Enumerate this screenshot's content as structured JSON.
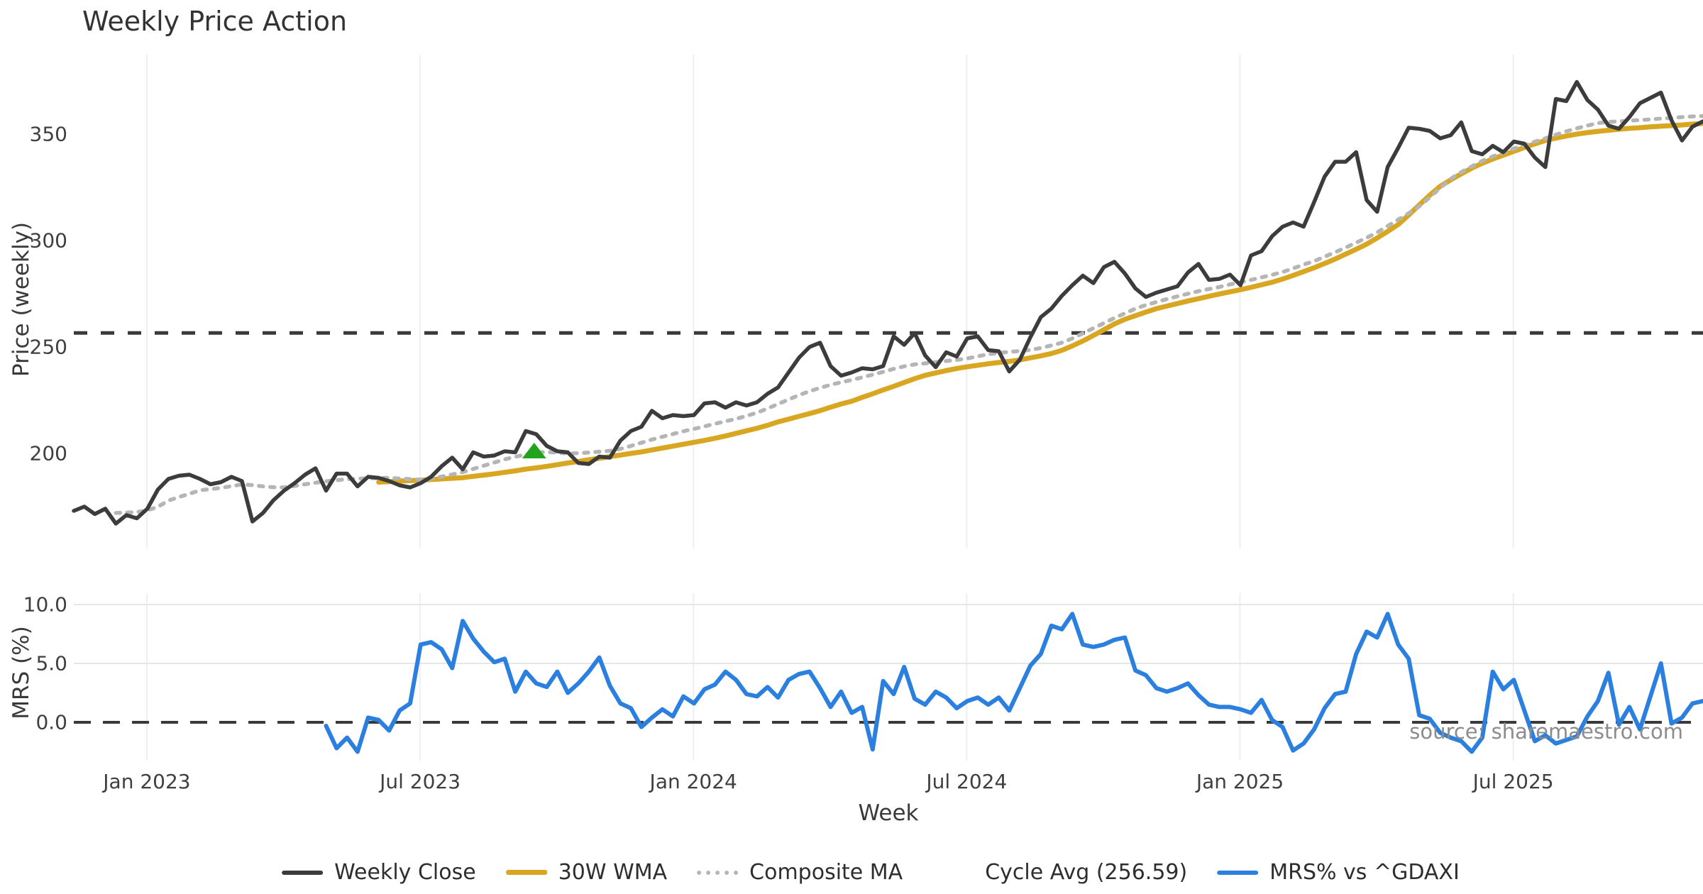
{
  "chart_data": {
    "type": "line",
    "title": "Weekly Price Action",
    "source": "source: sharemaestro.com",
    "x_axis": {
      "label": "Week",
      "ticks": [
        {
          "label": "Jan 2023",
          "week": 6.95
        },
        {
          "label": "Jul 2023",
          "week": 32.95
        },
        {
          "label": "Jan 2024",
          "week": 58.95
        },
        {
          "label": "Jul 2024",
          "week": 84.95
        },
        {
          "label": "Jan 2025",
          "week": 110.95
        },
        {
          "label": "Jul 2025",
          "week": 136.95
        }
      ]
    },
    "colors": {
      "weekly_close": "#3C3C3C",
      "wma_30w": "#D8A620",
      "composite_ma": "#B5B5B5",
      "cycle_avg": "#3A3A3A",
      "mrs": "#2B7FDE",
      "marker_green": "#1FA41C",
      "grid": "#EFEFEF",
      "grid_h": "#E6E6E6"
    },
    "panels": [
      {
        "name": "price",
        "ylabel": "Price (weekly)",
        "yticks": [
          {
            "label": "350",
            "value": 350
          },
          {
            "label": "300",
            "value": 300
          },
          {
            "label": "250",
            "value": 250
          },
          {
            "label": "200",
            "value": 200
          }
        ],
        "cycle_avg_value": 256.59,
        "buy_marker": {
          "week": 43.8,
          "price": 201
        },
        "series": [
          {
            "name": "Weekly Close",
            "start_week": 0,
            "values": [
              173,
              175,
              171.5,
              174,
              167,
              171,
              169.5,
              174,
              183,
              188,
              189.5,
              190,
              188,
              185.5,
              186.5,
              189,
              187,
              168,
              172,
              178,
              182.5,
              186,
              190,
              193,
              182.5,
              190.5,
              190.5,
              184.5,
              189,
              188.5,
              187,
              185,
              184,
              186,
              189,
              194,
              198,
              192.5,
              200.5,
              198.5,
              199,
              201,
              200.5,
              210.5,
              209,
              203.5,
              201,
              200.5,
              195.5,
              195,
              198.5,
              198,
              206,
              210.5,
              212.5,
              220,
              216.5,
              218,
              217.5,
              218,
              223.5,
              224,
              221.5,
              224,
              222.5,
              224,
              228,
              231,
              238,
              245,
              250,
              252,
              241,
              236.5,
              238,
              240,
              239.5,
              241,
              255,
              251,
              256.5,
              246,
              240.5,
              247.5,
              245.5,
              254,
              255,
              248.5,
              248,
              238.5,
              244,
              254.5,
              264,
              268,
              274,
              279,
              283.5,
              280,
              287.5,
              290,
              284.5,
              277.5,
              273.5,
              275.5,
              277,
              278.5,
              285,
              289,
              281.5,
              282,
              284,
              279,
              293,
              295,
              302,
              306.5,
              308.5,
              306.5,
              318,
              330,
              337,
              337,
              341.5,
              319,
              313.5,
              334.5,
              343.5,
              353,
              352.5,
              351.5,
              348,
              349.5,
              355.5,
              342,
              340.5,
              344.5,
              341.5,
              346.5,
              345.5,
              339,
              334.5,
              366.5,
              365.5,
              374.5,
              366,
              361.5,
              354,
              352.5,
              358,
              364.5,
              367,
              369.5,
              356.5,
              347,
              353.5,
              356
            ]
          },
          {
            "name": "30W WMA",
            "start_week": 29,
            "values": [
              186.5,
              186.7,
              187,
              187.2,
              187.4,
              187.7,
              188,
              188.3,
              188.6,
              189.2,
              189.8,
              190.4,
              191.1,
              191.8,
              192.6,
              193.2,
              193.9,
              194.7,
              195.5,
              196.2,
              197,
              197.7,
              198.5,
              199.2,
              200,
              200.7,
              201.6,
              202.5,
              203.4,
              204.3,
              205.2,
              206.1,
              207.1,
              208.2,
              209.4,
              210.6,
              211.8,
              213.2,
              214.8,
              216.1,
              217.4,
              218.7,
              220.1,
              221.7,
              223.2,
              224.5,
              226.3,
              228,
              229.8,
              231.5,
              233.3,
              235.1,
              236.7,
              237.8,
              238.9,
              239.9,
              240.7,
              241.4,
              242.1,
              242.7,
              243.2,
              243.9,
              244.9,
              245.8,
              246.9,
              248.4,
              250.5,
              252.8,
              255.4,
              258.1,
              260.8,
              263,
              264.7,
              266.4,
              268,
              269.2,
              270.4,
              271.6,
              272.7,
              273.8,
              274.9,
              275.9,
              276.9,
              278,
              279.2,
              280.4,
              281.9,
              283.6,
              285.4,
              287.2,
              289.2,
              291.3,
              293.6,
              295.9,
              298.3,
              301.2,
              304.3,
              307.5,
              312,
              316.7,
              321.3,
              325.5,
              328.5,
              331.3,
              334,
              336.3,
              338.3,
              340.1,
              341.9,
              343.7,
              345.4,
              347,
              348.1,
              349.1,
              350,
              350.7,
              351.3,
              351.8,
              352.3,
              352.7,
              353,
              353.4,
              353.7,
              354,
              354.3,
              354.7,
              355
            ]
          },
          {
            "name": "Composite MA",
            "start_week": 4,
            "values": [
              172,
              172.2,
              172.4,
              173.3,
              174.9,
              177.8,
              179.5,
              181,
              182.7,
              183.2,
              183.8,
              184.6,
              185.4,
              185.1,
              184.5,
              184.1,
              184,
              184.7,
              185.5,
              186.2,
              186.9,
              187.4,
              187.9,
              188.1,
              188.3,
              188.4,
              188.5,
              188.2,
              187.9,
              187.6,
              188,
              189.1,
              190.1,
              191.2,
              192.7,
              194.2,
              195.7,
              197.2,
              198.4,
              199.5,
              200.4,
              200.7,
              200.3,
              200,
              200.1,
              200.4,
              200.8,
              201.2,
              202.1,
              203.5,
              205,
              206.5,
              207.8,
              209.1,
              210.4,
              211.5,
              212.7,
              213.9,
              215.1,
              216.2,
              217.6,
              219.1,
              221.1,
              223.2,
              225.3,
              227.4,
              229.2,
              230.8,
              232.2,
              233.4,
              234.5,
              235.7,
              237,
              238.3,
              239.7,
              240.9,
              241.8,
              242.3,
              242.9,
              243.4,
              243.9,
              244.6,
              245.6,
              246.6,
              247.2,
              247.7,
              248.1,
              248.6,
              249.5,
              250.7,
              252,
              254,
              256.4,
              258.8,
              261.2,
              263.6,
              265.8,
              268,
              269.7,
              271.1,
              272.5,
              273.8,
              275,
              276.2,
              277.2,
              278.2,
              279.4,
              280.4,
              281.5,
              282.7,
              283.9,
              285.2,
              286.9,
              288.7,
              290.3,
              292.4,
              294.5,
              296.7,
              299,
              301.3,
              303.8,
              306.8,
              309.8,
              312.8,
              316,
              320.3,
              324.7,
              329,
              332.1,
              334.8,
              337.4,
              339.5,
              341.3,
              343.2,
              344.8,
              346.4,
              348,
              349.7,
              351.3,
              352.7,
              354,
              355.2,
              355.7,
              356,
              356.3,
              356.6,
              356.9,
              357.3,
              357.6,
              358,
              358.3,
              358.5
            ]
          }
        ]
      },
      {
        "name": "mrs",
        "ylabel": "MRS (%)",
        "yticks": [
          {
            "label": "10.0",
            "value": 10
          },
          {
            "label": "5.0",
            "value": 5
          },
          {
            "label": "0.0",
            "value": 0
          }
        ],
        "zero_line_value": 0,
        "series": [
          {
            "name": "MRS% vs ^GDAXI",
            "start_week": 24,
            "values": [
              -0.3,
              -2.2,
              -1.3,
              -2.5,
              0.4,
              0.2,
              -0.7,
              1,
              1.6,
              6.6,
              6.8,
              6.2,
              4.6,
              8.6,
              7.1,
              6,
              5.1,
              5.4,
              2.6,
              4.3,
              3.3,
              3,
              4.3,
              2.5,
              3.3,
              4.3,
              5.5,
              3.1,
              1.6,
              1.2,
              -0.4,
              0.4,
              1.1,
              0.5,
              2.2,
              1.6,
              2.8,
              3.2,
              4.3,
              3.6,
              2.4,
              2.2,
              3,
              2.1,
              3.6,
              4.1,
              4.3,
              2.9,
              1.3,
              2.6,
              0.8,
              1.3,
              -2.3,
              3.5,
              2.4,
              4.7,
              2,
              1.5,
              2.6,
              2.1,
              1.2,
              1.8,
              2.1,
              1.5,
              2.1,
              1,
              2.9,
              4.8,
              5.8,
              8.2,
              7.9,
              9.2,
              6.6,
              6.4,
              6.6,
              7,
              7.2,
              4.4,
              4,
              2.9,
              2.6,
              2.9,
              3.3,
              2.3,
              1.5,
              1.3,
              1.3,
              1.1,
              0.8,
              1.9,
              0.2,
              -0.4,
              -2.4,
              -1.8,
              -0.6,
              1.2,
              2.4,
              2.6,
              5.8,
              7.7,
              7.2,
              9.2,
              6.6,
              5.4,
              0.6,
              0.3,
              -0.9,
              -1.3,
              -1.6,
              -2.5,
              -1.3,
              4.3,
              2.8,
              3.6,
              1,
              -1.6,
              -1.1,
              -1.8,
              -1.5,
              -1.2,
              0.5,
              1.8,
              4.2,
              -0.2,
              1.3,
              -0.6,
              2.2,
              5,
              -0.1,
              0.4,
              1.6,
              1.8
            ]
          }
        ]
      }
    ],
    "legend": [
      {
        "label": "Weekly Close",
        "style": "solid",
        "color": "#3C3C3C"
      },
      {
        "label": "30W WMA",
        "style": "solid",
        "color": "#D8A620"
      },
      {
        "label": "Composite MA",
        "style": "dotted",
        "color": "#B5B5B5"
      },
      {
        "label": "Cycle Avg (256.59)",
        "style": "dashed",
        "color": "#3A3A3A"
      },
      {
        "label": "MRS% vs ^GDAXI",
        "style": "solid",
        "color": "#2B7FDE"
      }
    ]
  }
}
